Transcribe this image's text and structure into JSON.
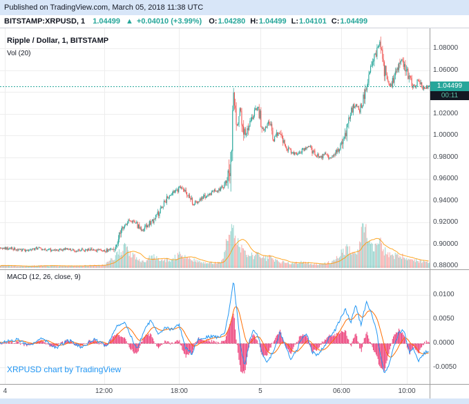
{
  "header": {
    "published": "Published on TradingView.com, March 05, 2018 11:38 UTC"
  },
  "symbol_bar": {
    "symbol": "BITSTAMP:XRPUSD, 1",
    "last_price": "1.04499",
    "arrow": "▲",
    "change": "+0.04010 (+3.99%)",
    "ohlc": [
      {
        "label": "O:",
        "value": "1.04280"
      },
      {
        "label": "H:",
        "value": "1.04499"
      },
      {
        "label": "L:",
        "value": "1.04101"
      },
      {
        "label": "C:",
        "value": "1.04499"
      }
    ]
  },
  "legend": {
    "main": "Ripple / Dollar, 1, BITSTAMP",
    "volume": "Vol (20)",
    "macd": "MACD (12, 26, close, 9)"
  },
  "watermark": "XRPUSD chart by TradingView",
  "price_label": {
    "value": "1.04499",
    "countdown": "00:11"
  },
  "colors": {
    "up": "#26a69a",
    "down": "#ef5350",
    "macd_line": "#2196f3",
    "signal_line": "#ff6d00",
    "histogram": "#e91e63",
    "volume_ma": "#ff9800",
    "watermark_blue": "#2196f3",
    "topbar_bg": "#d8e6f8",
    "grid": "#ededed",
    "border": "#9d9d9d"
  },
  "chart_data": {
    "type": "candlestick",
    "title": "Ripple / Dollar, 1, BITSTAMP",
    "indicators": [
      "Vol (20)",
      "MACD (12, 26, close, 9)"
    ],
    "x_axis": {
      "ticks": [
        {
          "label": "4",
          "pos": 0.012
        },
        {
          "label": "12:00",
          "pos": 0.242
        },
        {
          "label": "18:00",
          "pos": 0.417
        },
        {
          "label": "5",
          "pos": 0.606
        },
        {
          "label": "06:00",
          "pos": 0.795
        },
        {
          "label": "10:00",
          "pos": 0.947
        }
      ]
    },
    "price_axis": {
      "ticks": [
        "1.08000",
        "1.06000",
        "1.04000",
        "1.02000",
        "1.00000",
        "0.98000",
        "0.96000",
        "0.94000",
        "0.92000",
        "0.90000",
        "0.88000"
      ],
      "last": 1.04499
    },
    "macd_axis": {
      "ticks": [
        "0.0100",
        "0.0050",
        "0.0000",
        "-0.0050"
      ]
    },
    "price_anchors": [
      [
        0,
        0.897
      ],
      [
        0.03,
        0.8955
      ],
      [
        0.06,
        0.8945
      ],
      [
        0.09,
        0.896
      ],
      [
        0.12,
        0.8945
      ],
      [
        0.15,
        0.8955
      ],
      [
        0.18,
        0.894
      ],
      [
        0.21,
        0.8955
      ],
      [
        0.24,
        0.8935
      ],
      [
        0.265,
        0.896
      ],
      [
        0.275,
        0.906
      ],
      [
        0.285,
        0.9155
      ],
      [
        0.3,
        0.9215
      ],
      [
        0.315,
        0.9195
      ],
      [
        0.33,
        0.9125
      ],
      [
        0.345,
        0.9185
      ],
      [
        0.36,
        0.9225
      ],
      [
        0.375,
        0.9315
      ],
      [
        0.39,
        0.9425
      ],
      [
        0.405,
        0.9475
      ],
      [
        0.42,
        0.9525
      ],
      [
        0.435,
        0.9455
      ],
      [
        0.45,
        0.9375
      ],
      [
        0.465,
        0.9395
      ],
      [
        0.48,
        0.9445
      ],
      [
        0.495,
        0.9475
      ],
      [
        0.51,
        0.9505
      ],
      [
        0.525,
        0.9545
      ],
      [
        0.535,
        0.9705
      ],
      [
        0.543,
        1.0405
      ],
      [
        0.548,
        1.0185
      ],
      [
        0.553,
        1.0065
      ],
      [
        0.558,
        1.0255
      ],
      [
        0.565,
        1.0115
      ],
      [
        0.572,
        0.9985
      ],
      [
        0.58,
        1.0125
      ],
      [
        0.59,
        1.0195
      ],
      [
        0.6,
        1.0255
      ],
      [
        0.612,
        1.0045
      ],
      [
        0.625,
        1.0125
      ],
      [
        0.638,
        0.9965
      ],
      [
        0.65,
        1.0035
      ],
      [
        0.662,
        0.9905
      ],
      [
        0.675,
        0.9855
      ],
      [
        0.69,
        0.9825
      ],
      [
        0.705,
        0.9865
      ],
      [
        0.72,
        0.9895
      ],
      [
        0.732,
        0.9835
      ],
      [
        0.745,
        0.9795
      ],
      [
        0.757,
        0.9835
      ],
      [
        0.77,
        0.9785
      ],
      [
        0.782,
        0.9845
      ],
      [
        0.795,
        0.9895
      ],
      [
        0.808,
        1.0065
      ],
      [
        0.818,
        1.0225
      ],
      [
        0.828,
        1.0285
      ],
      [
        0.838,
        1.0225
      ],
      [
        0.848,
        1.0385
      ],
      [
        0.858,
        1.0525
      ],
      [
        0.868,
        1.0655
      ],
      [
        0.878,
        1.0795
      ],
      [
        0.885,
        1.0845
      ],
      [
        0.893,
        1.0645
      ],
      [
        0.9,
        1.0545
      ],
      [
        0.908,
        1.0445
      ],
      [
        0.917,
        1.0505
      ],
      [
        0.927,
        1.0605
      ],
      [
        0.937,
        1.0715
      ],
      [
        0.947,
        1.0585
      ],
      [
        0.957,
        1.0495
      ],
      [
        0.966,
        1.0445
      ],
      [
        0.975,
        1.0525
      ],
      [
        0.985,
        1.0435
      ],
      [
        1,
        1.045
      ]
    ],
    "volume_anchors": [
      [
        0,
        0.05
      ],
      [
        0.05,
        0.04
      ],
      [
        0.1,
        0.05
      ],
      [
        0.15,
        0.04
      ],
      [
        0.2,
        0.05
      ],
      [
        0.24,
        0.06
      ],
      [
        0.27,
        0.25
      ],
      [
        0.29,
        0.45
      ],
      [
        0.305,
        0.3
      ],
      [
        0.32,
        0.18
      ],
      [
        0.34,
        0.12
      ],
      [
        0.355,
        0.3
      ],
      [
        0.37,
        0.15
      ],
      [
        0.4,
        0.18
      ],
      [
        0.42,
        0.3
      ],
      [
        0.44,
        0.22
      ],
      [
        0.46,
        0.15
      ],
      [
        0.48,
        0.12
      ],
      [
        0.5,
        0.1
      ],
      [
        0.52,
        0.18
      ],
      [
        0.532,
        0.85
      ],
      [
        0.54,
        1.0
      ],
      [
        0.55,
        0.6
      ],
      [
        0.56,
        0.45
      ],
      [
        0.575,
        0.3
      ],
      [
        0.59,
        0.25
      ],
      [
        0.6,
        0.3
      ],
      [
        0.615,
        0.2
      ],
      [
        0.63,
        0.22
      ],
      [
        0.645,
        0.15
      ],
      [
        0.66,
        0.12
      ],
      [
        0.68,
        0.1
      ],
      [
        0.7,
        0.12
      ],
      [
        0.72,
        0.1
      ],
      [
        0.74,
        0.08
      ],
      [
        0.76,
        0.1
      ],
      [
        0.78,
        0.15
      ],
      [
        0.795,
        0.35
      ],
      [
        0.81,
        0.4
      ],
      [
        0.822,
        0.3
      ],
      [
        0.835,
        0.35
      ],
      [
        0.848,
        1.0
      ],
      [
        0.858,
        0.5
      ],
      [
        0.87,
        0.45
      ],
      [
        0.885,
        0.55
      ],
      [
        0.9,
        0.3
      ],
      [
        0.915,
        0.25
      ],
      [
        0.93,
        0.3
      ],
      [
        0.945,
        0.2
      ],
      [
        0.96,
        0.18
      ],
      [
        0.975,
        0.15
      ],
      [
        1,
        0.12
      ]
    ],
    "macd_anchors": [
      [
        0,
        0
      ],
      [
        0.04,
        0.0008
      ],
      [
        0.07,
        -0.0006
      ],
      [
        0.1,
        0.001
      ],
      [
        0.13,
        -0.001
      ],
      [
        0.16,
        0.0006
      ],
      [
        0.19,
        -0.0008
      ],
      [
        0.22,
        0.0008
      ],
      [
        0.25,
        -0.0006
      ],
      [
        0.272,
        0.0035
      ],
      [
        0.29,
        0.0045
      ],
      [
        0.305,
        0.0015
      ],
      [
        0.32,
        -0.0012
      ],
      [
        0.338,
        0.0028
      ],
      [
        0.352,
        0.0048
      ],
      [
        0.368,
        0.0018
      ],
      [
        0.385,
        0.0032
      ],
      [
        0.4,
        0.0028
      ],
      [
        0.418,
        0.0038
      ],
      [
        0.432,
        -0.0008
      ],
      [
        0.447,
        -0.0022
      ],
      [
        0.462,
        0.0008
      ],
      [
        0.478,
        0.0012
      ],
      [
        0.495,
        0.0015
      ],
      [
        0.51,
        0.0012
      ],
      [
        0.525,
        0.0022
      ],
      [
        0.537,
        0.0085
      ],
      [
        0.545,
        0.0128
      ],
      [
        0.553,
        0.0062
      ],
      [
        0.562,
        -0.0015
      ],
      [
        0.572,
        -0.0048
      ],
      [
        0.582,
        0.0005
      ],
      [
        0.592,
        0.0028
      ],
      [
        0.603,
        0.0012
      ],
      [
        0.613,
        -0.0028
      ],
      [
        0.625,
        -0.0038
      ],
      [
        0.64,
        -0.0012
      ],
      [
        0.653,
        0.0022
      ],
      [
        0.665,
        -0.0005
      ],
      [
        0.677,
        -0.0032
      ],
      [
        0.69,
        -0.0018
      ],
      [
        0.703,
        0.0008
      ],
      [
        0.716,
        0.0018
      ],
      [
        0.728,
        -0.0018
      ],
      [
        0.742,
        -0.0025
      ],
      [
        0.755,
        -0.0008
      ],
      [
        0.768,
        0.0012
      ],
      [
        0.782,
        0.0028
      ],
      [
        0.795,
        0.0052
      ],
      [
        0.806,
        0.0072
      ],
      [
        0.818,
        0.0042
      ],
      [
        0.83,
        0.0078
      ],
      [
        0.842,
        0.0038
      ],
      [
        0.855,
        0.0088
      ],
      [
        0.866,
        0.0062
      ],
      [
        0.877,
        0.0032
      ],
      [
        0.887,
        -0.0025
      ],
      [
        0.897,
        -0.0062
      ],
      [
        0.907,
        -0.0048
      ],
      [
        0.917,
        -0.0012
      ],
      [
        0.93,
        0.0022
      ],
      [
        0.942,
        0.0028
      ],
      [
        0.955,
        -0.0018
      ],
      [
        0.965,
        -0.0012
      ],
      [
        0.976,
        -0.0038
      ],
      [
        0.988,
        -0.0022
      ],
      [
        1,
        -0.0015
      ]
    ]
  }
}
